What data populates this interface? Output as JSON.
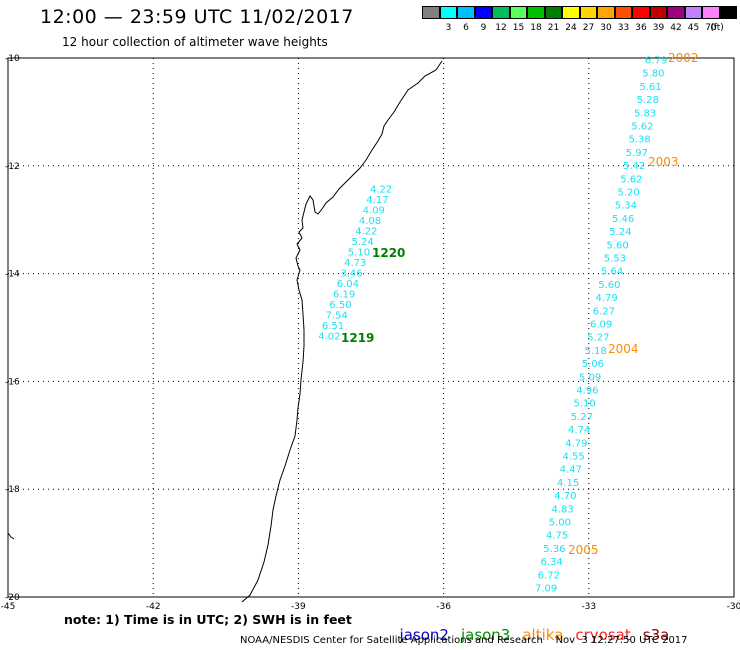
{
  "header": {
    "title": "12:00 — 23:59 UTC 11/02/2017",
    "subtitle": "12 hour collection of altimeter wave heights"
  },
  "colorbar": {
    "unit_label": "(ft)",
    "entries": [
      {
        "label": "",
        "color": "#808080"
      },
      {
        "label": "3",
        "color": "#00ffff"
      },
      {
        "label": "6",
        "color": "#00bfff"
      },
      {
        "label": "9",
        "color": "#0000ff"
      },
      {
        "label": "12",
        "color": "#00bf5a"
      },
      {
        "label": "15",
        "color": "#5aff5a"
      },
      {
        "label": "18",
        "color": "#00c000"
      },
      {
        "label": "21",
        "color": "#008000"
      },
      {
        "label": "24",
        "color": "#ffff00"
      },
      {
        "label": "27",
        "color": "#ffd700"
      },
      {
        "label": "30",
        "color": "#ffa500"
      },
      {
        "label": "33",
        "color": "#ff5000"
      },
      {
        "label": "36",
        "color": "#ff0000"
      },
      {
        "label": "39",
        "color": "#c00000"
      },
      {
        "label": "42",
        "color": "#a00080"
      },
      {
        "label": "45",
        "color": "#c080ff"
      },
      {
        "label": "70",
        "color": "#ff80ff"
      },
      {
        "label": "",
        "color": "#000000"
      }
    ]
  },
  "map": {
    "lon_range": [
      -45,
      -30
    ],
    "lat_range": [
      -20,
      -10
    ],
    "lon_ticks": [
      "-45",
      "-42",
      "-39",
      "-36",
      "-33",
      "-30"
    ],
    "lat_ticks": [
      "-10",
      "-12",
      "-14",
      "-16",
      "-18",
      "-20"
    ],
    "swh_color": "#1ee0f0",
    "tracks": [
      {
        "values": [
          "4.22",
          "4.17",
          "4.09",
          "4.08",
          "4.22",
          "5.24",
          "5.10",
          "4.73",
          "3.46",
          "6.04",
          "6.19",
          "6.50",
          "7.54",
          "6.51",
          "4.02"
        ]
      },
      {
        "values": [
          "6.79",
          "5.80",
          "5.61",
          "5.28",
          "5.83",
          "5.62",
          "5.38",
          "5.97",
          "5.42",
          "5.62",
          "5.20",
          "5.34",
          "5.46",
          "5.24",
          "5.60",
          "5.53",
          "5.64",
          "5.60",
          "4.79",
          "6.27",
          "6.09",
          "5.27",
          "5.18",
          "5.06",
          "5.09",
          "4.96",
          "5.10",
          "5.27",
          "4.74",
          "4.79",
          "4.55",
          "4.47",
          "4.15",
          "4.70",
          "4.83",
          "5.00",
          "4.75",
          "5.36",
          "6.34",
          "6.72",
          "7.09"
        ]
      }
    ],
    "pass_labels": [
      {
        "text": "1220",
        "satellite": "jason3"
      },
      {
        "text": "1219",
        "satellite": "jason3"
      },
      {
        "text": "2002",
        "satellite": "altika"
      },
      {
        "text": "2003",
        "satellite": "altika"
      },
      {
        "text": "2004",
        "satellite": "altika"
      },
      {
        "text": "2005",
        "satellite": "altika"
      }
    ]
  },
  "note": "note: 1) Time is in UTC; 2) SWH is in feet",
  "satellites": [
    {
      "name": "jason2",
      "color": "#0000cd"
    },
    {
      "name": "jason3",
      "color": "#009000"
    },
    {
      "name": "altika",
      "color": "#ff8c00"
    },
    {
      "name": "cryosat",
      "color": "#ff2020"
    },
    {
      "name": "s3a",
      "color": "#8b0000"
    }
  ],
  "footer": "NOAA/NESDIS Center for Satellite Applications and Research    Nov  3 12:27:50 UTC 2017"
}
